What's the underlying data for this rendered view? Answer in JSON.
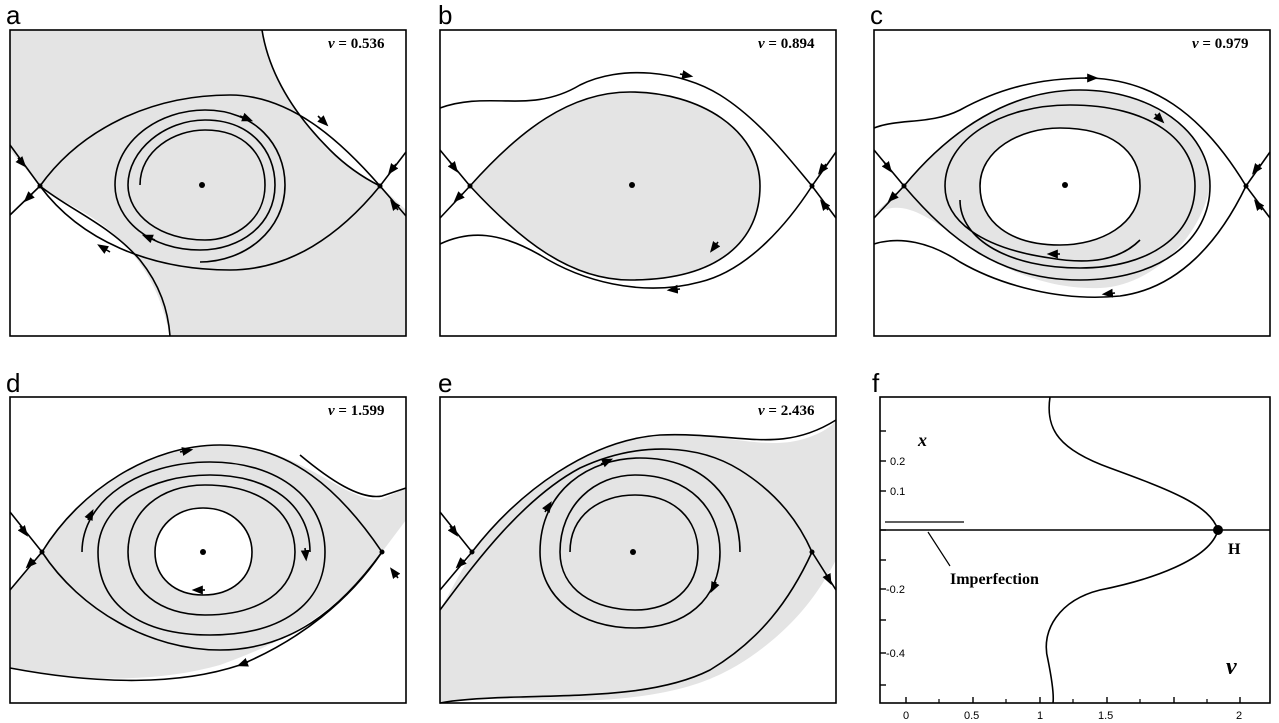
{
  "panels": [
    {
      "letter": "a",
      "nu_symbol": "v",
      "nu_value": "= 0.536"
    },
    {
      "letter": "b",
      "nu_symbol": "v",
      "nu_value": "= 0.894"
    },
    {
      "letter": "c",
      "nu_symbol": "v",
      "nu_value": "= 0.979"
    },
    {
      "letter": "d",
      "nu_symbol": "v",
      "nu_value": "= 1.599"
    },
    {
      "letter": "e",
      "nu_symbol": "v",
      "nu_value": "= 2.436"
    }
  ],
  "plot_f": {
    "letter": "f",
    "y_var": "x",
    "x_var": "v",
    "y_ticks": [
      "0.2",
      "0.1",
      "-0.2",
      "-0.4"
    ],
    "x_ticks": [
      "0",
      "0.5",
      "1",
      "1.5",
      "2"
    ],
    "point_label": "H",
    "annotation": "Imperfection"
  }
}
